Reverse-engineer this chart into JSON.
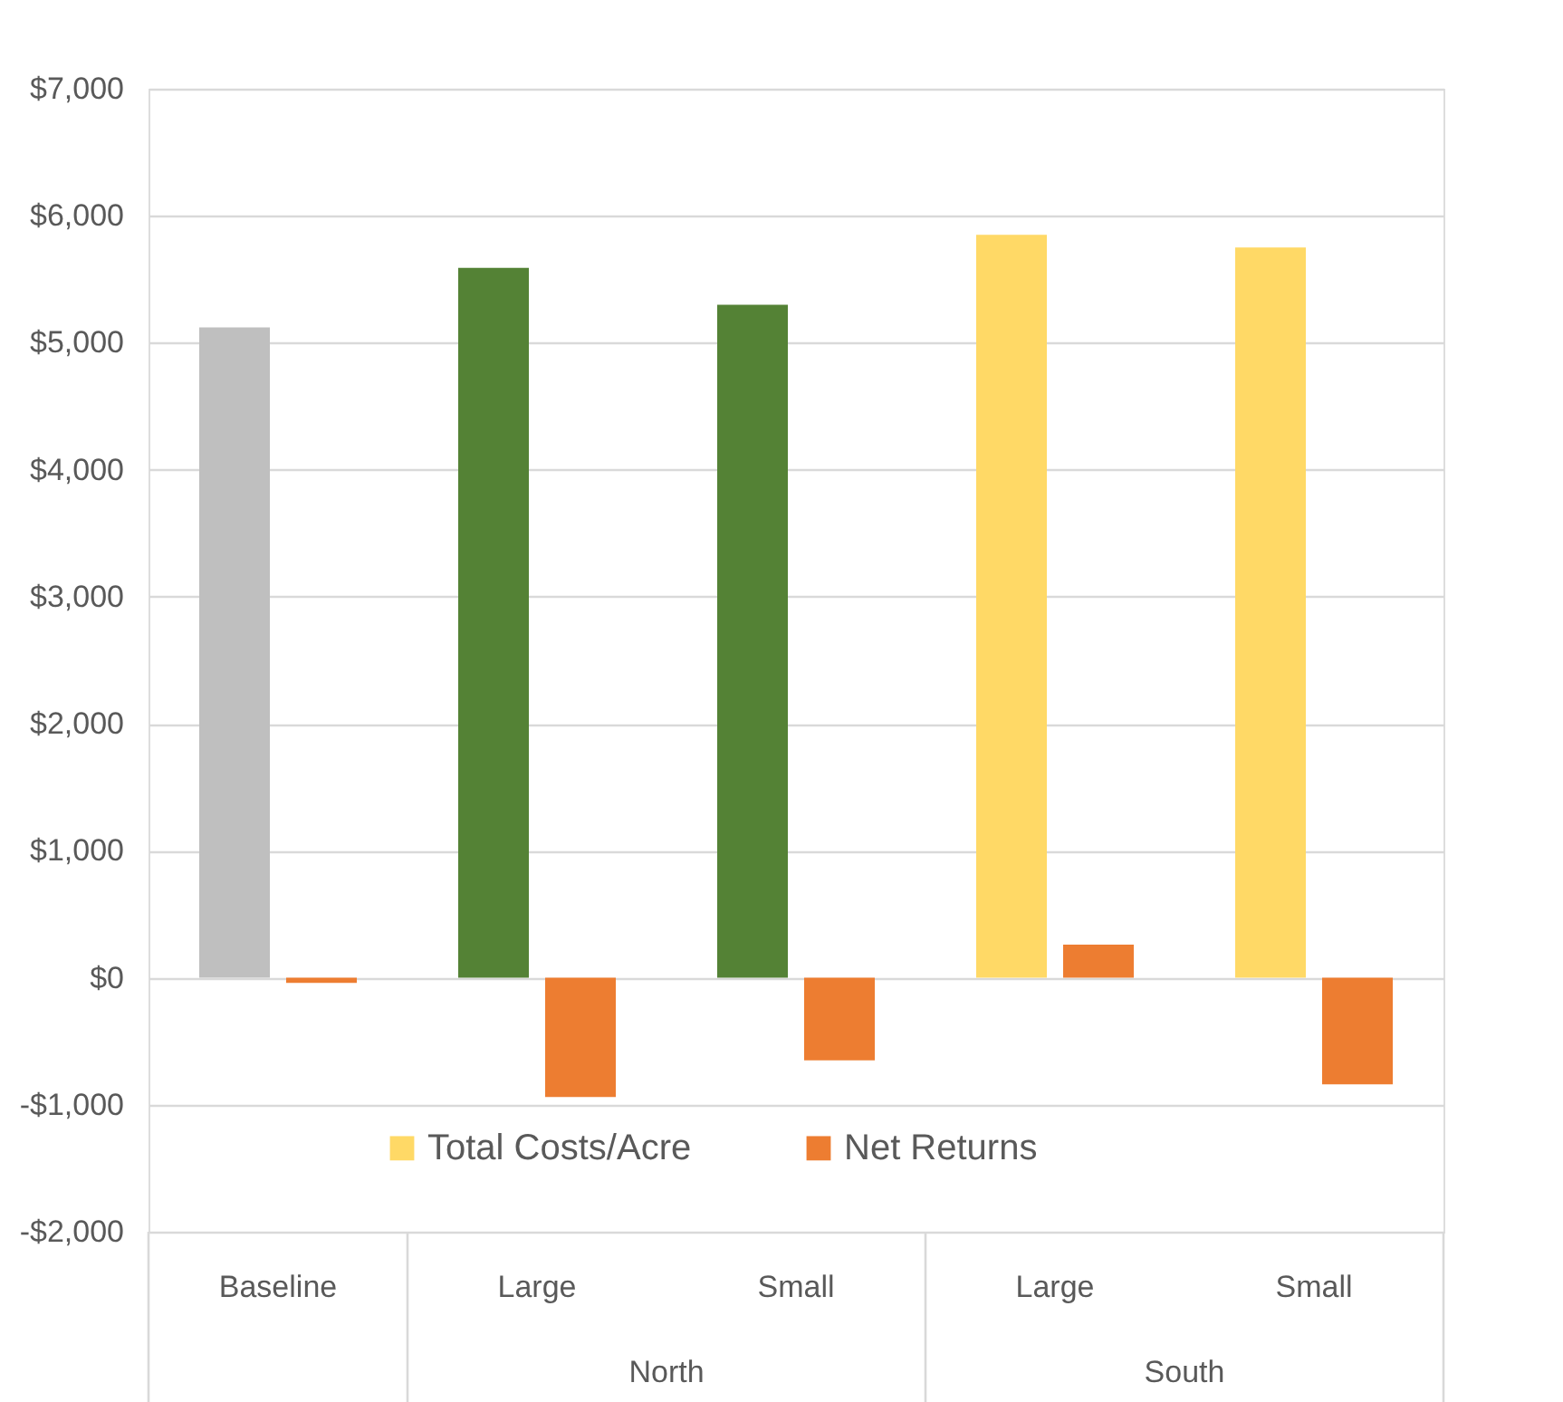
{
  "chart_data": {
    "type": "bar",
    "categories": [
      "Baseline",
      "Large",
      "Small",
      "Large",
      "Small"
    ],
    "series": [
      {
        "name": "Total Costs/Acre",
        "color": "#ffd966",
        "colors": [
          "#bfbfbf",
          "#548235",
          "#548235",
          "#ffd966",
          "#ffd966"
        ],
        "values": [
          5120,
          5590,
          5300,
          5850,
          5750
        ]
      },
      {
        "name": "Net Returns",
        "color": "#ed7d31",
        "values": [
          -40,
          -940,
          -650,
          260,
          -840
        ]
      }
    ],
    "annotations": [
      "North",
      "South"
    ],
    "ylim": [
      -2000,
      7000
    ],
    "yticks": [
      {
        "value": -2000,
        "label": "-$2,000"
      },
      {
        "value": -1000,
        "label": "-$1,000"
      },
      {
        "value": 0,
        "label": "$0"
      },
      {
        "value": 1000,
        "label": "$1,000"
      },
      {
        "value": 2000,
        "label": "$2,000"
      },
      {
        "value": 3000,
        "label": "$3,000"
      },
      {
        "value": 4000,
        "label": "$4,000"
      },
      {
        "value": 5000,
        "label": "$5,000"
      },
      {
        "value": 6000,
        "label": "$6,000"
      },
      {
        "value": 7000,
        "label": "$7,000"
      }
    ],
    "grid": "y",
    "legend": "bottom"
  }
}
